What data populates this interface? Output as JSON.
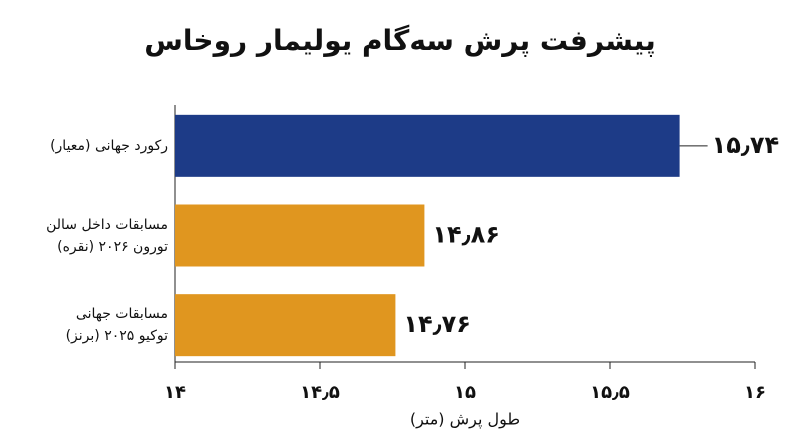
{
  "chart_data": {
    "type": "hbar",
    "title": "پیشرفت پرش سه‌گام یولیمار روخاس",
    "categories": [
      "رکورد جهانی (معیار)",
      "مسابقات داخل سالن\nتورون ۲۰۲۶ (نقره)",
      "مسابقات جهانی\nتوکیو ۲۰۲۵ (برنز)"
    ],
    "values": [
      15.74,
      14.86,
      14.76
    ],
    "value_labels": [
      "۱۵٫۷۴",
      "۱۴٫۸۶",
      "۱۴٫۷۶"
    ],
    "colors": [
      "#1d3b87",
      "#e0961f",
      "#e0961f"
    ],
    "xlim": [
      14,
      16
    ],
    "xticks": [
      {
        "value": 14,
        "label": "۱۴"
      },
      {
        "value": 14.5,
        "label": "۱۴٫۵"
      },
      {
        "value": 15,
        "label": "۱۵"
      },
      {
        "value": 15.5,
        "label": "۱۵٫۵"
      },
      {
        "value": 16,
        "label": "۱۶"
      }
    ],
    "xlabel": "طول پرش (متر)",
    "grid": false
  }
}
